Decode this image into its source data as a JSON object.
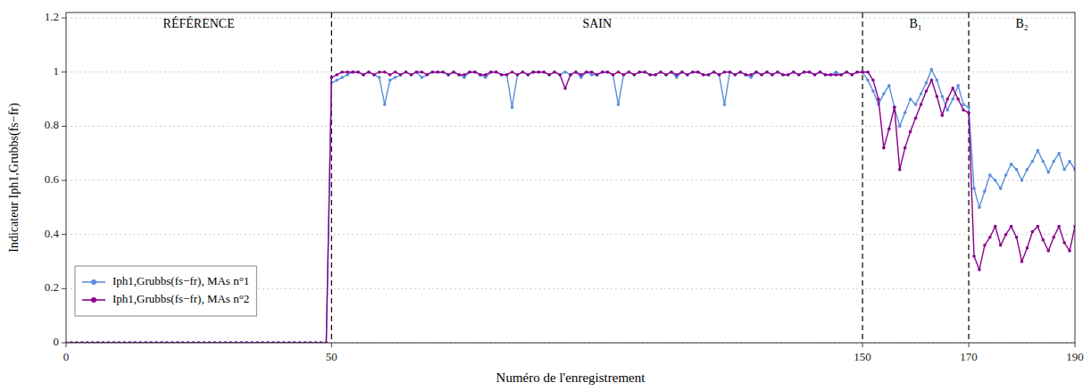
{
  "chart_data": {
    "type": "line",
    "xlabel": "Numéro de l'enregistrement",
    "ylabel": "Indicateur Iph1,Grubbs(fs−fr)",
    "xlim": [
      0,
      190
    ],
    "ylim": [
      0,
      1.22
    ],
    "xticks": [
      0,
      50,
      150,
      170,
      190
    ],
    "yticks": [
      0,
      0.2,
      0.4,
      0.6,
      0.8,
      1,
      1.2
    ],
    "grid": true,
    "legend": "lower left",
    "vlines": [
      50,
      150,
      170
    ],
    "annotations": [
      {
        "text": "RÉFÉRENCE",
        "x": 25,
        "y": 1.195
      },
      {
        "text": "SAIN",
        "x": 100,
        "y": 1.195
      },
      {
        "text": "B₁",
        "x": 160,
        "y": 1.195
      },
      {
        "text": "B₂",
        "x": 180,
        "y": 1.195
      }
    ],
    "x": [
      0,
      1,
      2,
      3,
      4,
      5,
      6,
      7,
      8,
      9,
      10,
      11,
      12,
      13,
      14,
      15,
      16,
      17,
      18,
      19,
      20,
      21,
      22,
      23,
      24,
      25,
      26,
      27,
      28,
      29,
      30,
      31,
      32,
      33,
      34,
      35,
      36,
      37,
      38,
      39,
      40,
      41,
      42,
      43,
      44,
      45,
      46,
      47,
      48,
      49,
      50,
      51,
      52,
      53,
      54,
      55,
      56,
      57,
      58,
      59,
      60,
      61,
      62,
      63,
      64,
      65,
      66,
      67,
      68,
      69,
      70,
      71,
      72,
      73,
      74,
      75,
      76,
      77,
      78,
      79,
      80,
      81,
      82,
      83,
      84,
      85,
      86,
      87,
      88,
      89,
      90,
      91,
      92,
      93,
      94,
      95,
      96,
      97,
      98,
      99,
      100,
      101,
      102,
      103,
      104,
      105,
      106,
      107,
      108,
      109,
      110,
      111,
      112,
      113,
      114,
      115,
      116,
      117,
      118,
      119,
      120,
      121,
      122,
      123,
      124,
      125,
      126,
      127,
      128,
      129,
      130,
      131,
      132,
      133,
      134,
      135,
      136,
      137,
      138,
      139,
      140,
      141,
      142,
      143,
      144,
      145,
      146,
      147,
      148,
      149,
      150,
      151,
      152,
      153,
      154,
      155,
      156,
      157,
      158,
      159,
      160,
      161,
      162,
      163,
      164,
      165,
      166,
      167,
      168,
      169,
      170,
      171,
      172,
      173,
      174,
      175,
      176,
      177,
      178,
      179,
      180,
      181,
      182,
      183,
      184,
      185,
      186,
      187,
      188,
      189,
      190
    ],
    "series": [
      {
        "name": "Iph1,Grubbs(fs−fr), MAs n°1",
        "color": "#5b8fdb",
        "marker": "circle",
        "line_style": "solid",
        "values": [
          0,
          0,
          0,
          0,
          0,
          0,
          0,
          0,
          0,
          0,
          0,
          0,
          0,
          0,
          0,
          0,
          0,
          0,
          0,
          0,
          0,
          0,
          0,
          0,
          0,
          0,
          0,
          0,
          0,
          0,
          0,
          0,
          0,
          0,
          0,
          0,
          0,
          0,
          0,
          0,
          0,
          0,
          0,
          0,
          0,
          0,
          0,
          0,
          0,
          0,
          0.96,
          0.97,
          0.98,
          0.99,
          1.0,
          1.0,
          0.99,
          1.0,
          0.99,
          0.98,
          0.88,
          0.97,
          0.98,
          0.99,
          1.0,
          0.99,
          1.0,
          0.98,
          0.99,
          1.0,
          1.0,
          1.0,
          0.99,
          1.0,
          0.99,
          0.98,
          1.0,
          1.0,
          0.99,
          0.98,
          1.0,
          1.0,
          0.99,
          0.99,
          0.87,
          0.99,
          1.0,
          0.99,
          1.0,
          1.0,
          1.0,
          0.99,
          1.0,
          0.99,
          1.0,
          0.99,
          1.0,
          0.98,
          1.0,
          0.99,
          0.99,
          1.0,
          1.0,
          0.99,
          0.88,
          0.99,
          1.0,
          0.99,
          1.0,
          1.0,
          0.99,
          0.99,
          1.0,
          0.99,
          1.0,
          0.98,
          1.0,
          0.99,
          1.0,
          1.0,
          0.99,
          0.99,
          1.0,
          0.99,
          0.88,
          1.0,
          0.99,
          1.0,
          0.99,
          0.98,
          1.0,
          0.99,
          1.0,
          0.99,
          1.0,
          0.99,
          0.99,
          1.0,
          0.99,
          1.0,
          1.0,
          0.99,
          1.0,
          0.99,
          0.99,
          1.0,
          0.99,
          1.0,
          0.99,
          1.0,
          1.0,
          0.97,
          0.93,
          0.88,
          0.92,
          0.95,
          0.87,
          0.8,
          0.85,
          0.9,
          0.88,
          0.92,
          0.96,
          1.01,
          0.97,
          0.91,
          0.86,
          0.9,
          0.95,
          0.88,
          0.87,
          0.57,
          0.5,
          0.56,
          0.62,
          0.6,
          0.57,
          0.62,
          0.66,
          0.64,
          0.6,
          0.64,
          0.67,
          0.71,
          0.67,
          0.63,
          0.67,
          0.7,
          0.64,
          0.67,
          0.64
        ]
      },
      {
        "name": "Iph1,Grubbs(fs−fr), MAs n°2",
        "color": "#8B008B",
        "marker": "circle",
        "line_style": "solid",
        "values": [
          0,
          0,
          0,
          0,
          0,
          0,
          0,
          0,
          0,
          0,
          0,
          0,
          0,
          0,
          0,
          0,
          0,
          0,
          0,
          0,
          0,
          0,
          0,
          0,
          0,
          0,
          0,
          0,
          0,
          0,
          0,
          0,
          0,
          0,
          0,
          0,
          0,
          0,
          0,
          0,
          0,
          0,
          0,
          0,
          0,
          0,
          0,
          0,
          0,
          0,
          0.98,
          0.99,
          1.0,
          1.0,
          1.0,
          1.0,
          0.99,
          1.0,
          0.99,
          1.0,
          1.0,
          0.99,
          1.0,
          0.99,
          1.0,
          0.99,
          1.0,
          1.0,
          0.99,
          1.0,
          1.0,
          1.0,
          0.99,
          1.0,
          0.99,
          0.99,
          1.0,
          1.0,
          0.99,
          0.99,
          1.0,
          1.0,
          0.99,
          0.99,
          1.0,
          0.99,
          1.0,
          0.99,
          1.0,
          1.0,
          1.0,
          0.99,
          1.0,
          0.99,
          0.94,
          0.99,
          1.0,
          0.99,
          1.0,
          1.0,
          0.99,
          1.0,
          1.0,
          0.99,
          1.0,
          0.99,
          1.0,
          0.99,
          1.0,
          1.0,
          0.99,
          0.99,
          1.0,
          0.99,
          1.0,
          0.99,
          1.0,
          0.99,
          1.0,
          1.0,
          0.99,
          0.99,
          1.0,
          0.99,
          1.0,
          1.0,
          0.99,
          1.0,
          0.99,
          0.99,
          1.0,
          0.99,
          1.0,
          0.99,
          1.0,
          0.99,
          0.99,
          1.0,
          0.99,
          1.0,
          1.0,
          0.99,
          1.0,
          0.99,
          0.99,
          0.99,
          0.99,
          1.0,
          0.99,
          1.0,
          1.0,
          1.0,
          0.97,
          0.9,
          0.72,
          0.79,
          0.87,
          0.64,
          0.72,
          0.78,
          0.83,
          0.88,
          0.93,
          0.97,
          0.91,
          0.84,
          0.9,
          0.94,
          0.9,
          0.86,
          0.85,
          0.32,
          0.27,
          0.36,
          0.39,
          0.43,
          0.36,
          0.4,
          0.43,
          0.39,
          0.3,
          0.35,
          0.41,
          0.43,
          0.38,
          0.34,
          0.39,
          0.43,
          0.37,
          0.34,
          0.43
        ]
      }
    ]
  }
}
